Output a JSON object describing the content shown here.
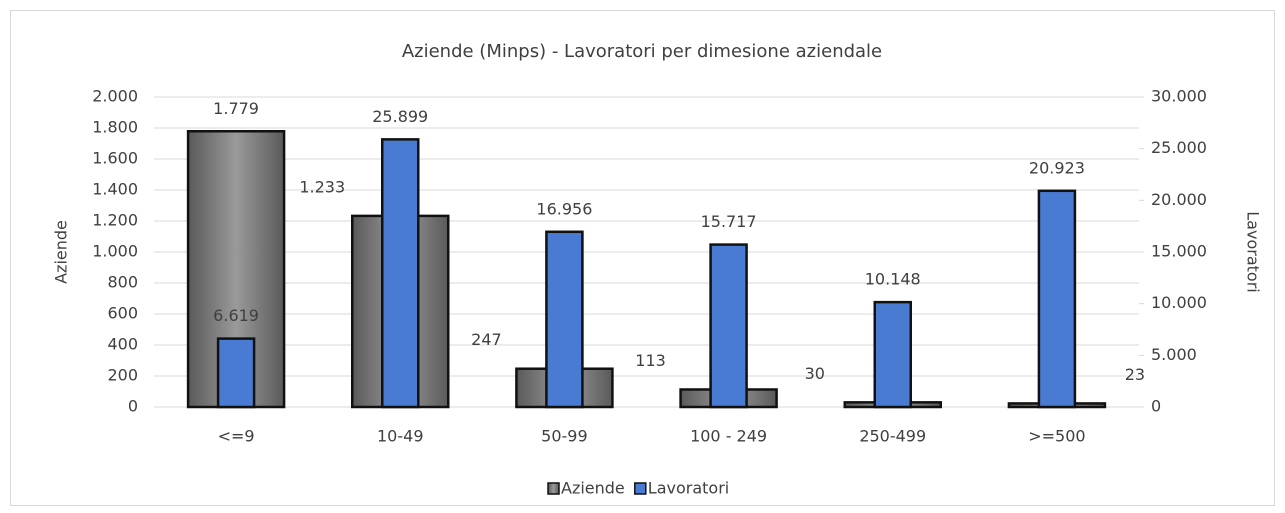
{
  "chart_data": {
    "type": "bar",
    "title": "Aziende (Minps) - Lavoratori per dimesione aziendale",
    "ylabel": "Aziende",
    "y2label": "Lavoratori",
    "categories": [
      "<=9",
      "10-49",
      "50-99",
      "100 - 249",
      "250-499",
      ">=500"
    ],
    "series": [
      {
        "name": "Aziende",
        "color": "#7f7f7f",
        "values": [
          1779,
          1233,
          247,
          113,
          30,
          23
        ],
        "value_labels": [
          "1.779",
          "1.233",
          "247",
          "113",
          "30",
          "23"
        ]
      },
      {
        "name": "Lavoratori",
        "color": "#4a7bd2",
        "axis": "y2",
        "values": [
          6619,
          25899,
          16956,
          15717,
          10148,
          20923
        ],
        "value_labels": [
          "6.619",
          "25.899",
          "16.956",
          "15.717",
          "10.148",
          "20.923"
        ]
      }
    ],
    "ylim": [
      0,
      2000
    ],
    "yticks": [
      0,
      200,
      400,
      600,
      800,
      {
        "value": 1000,
        "label": "1.000"
      },
      {
        "value": 1200,
        "label": "1.200"
      },
      {
        "value": 1400,
        "label": "1.400"
      },
      {
        "value": 1600,
        "label": "1.600"
      },
      {
        "value": 1800,
        "label": "1.800"
      },
      {
        "value": 2000,
        "label": "2.000"
      }
    ],
    "y2lim": [
      0,
      30000
    ],
    "y2ticks": [
      0,
      {
        "value": 5000,
        "label": "5.000"
      },
      {
        "value": 10000,
        "label": "10.000"
      },
      {
        "value": 15000,
        "label": "15.000"
      },
      {
        "value": 20000,
        "label": "20.000"
      },
      {
        "value": 25000,
        "label": "25.000"
      },
      {
        "value": 30000,
        "label": "30.000"
      }
    ],
    "grid": true,
    "legend": "bottom"
  }
}
